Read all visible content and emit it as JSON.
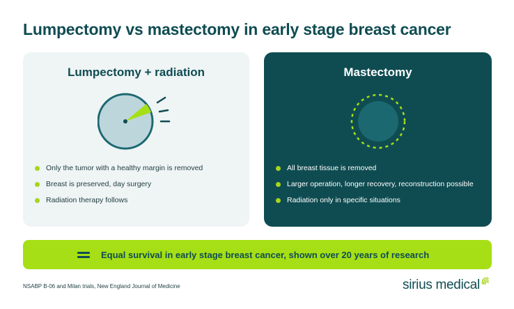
{
  "title": "Lumpectomy vs mastectomy in early stage breast cancer",
  "colors": {
    "primary": "#0f4c52",
    "accent": "#a6d51d",
    "banner": "#a6df15",
    "light_card": "#eff4f5",
    "circle_fill": "#bcd6dc"
  },
  "left_card": {
    "title": "Lumpectomy + radiation",
    "icon": "breast-with-small-tumor-removed-icon",
    "bullets": [
      "Only the tumor with a healthy margin is removed",
      "Breast is preserved, day surgery",
      "Radiation therapy follows"
    ]
  },
  "right_card": {
    "title": "Mastectomy",
    "icon": "breast-fully-removed-icon",
    "bullets": [
      "All breast tissue is removed",
      "Larger operation, longer recovery, reconstruction possible",
      "Radiation only in specific situations"
    ]
  },
  "banner": {
    "icon": "equals-icon",
    "text": "Equal survival in early stage breast cancer, shown over 20 years of research"
  },
  "footer": {
    "source": "NSABP B-06 and Milan trials, New England Journal of Medicine",
    "brand": "sirius medical",
    "brand_icon": "sirius-medical-logo-icon"
  }
}
